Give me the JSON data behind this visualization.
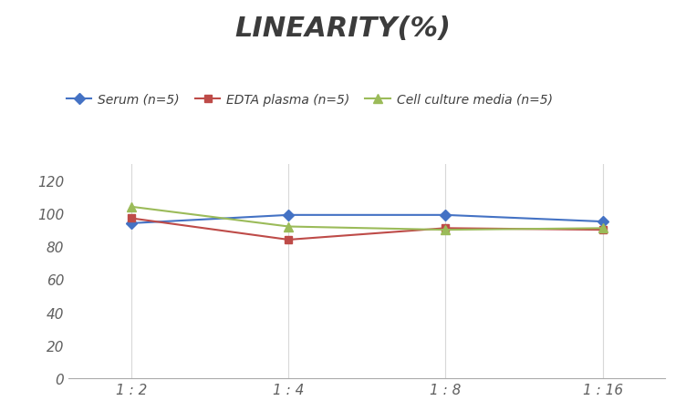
{
  "title": "LINEARITY(%)",
  "x_labels": [
    "1 : 2",
    "1 : 4",
    "1 : 8",
    "1 : 16"
  ],
  "x_positions": [
    0,
    1,
    2,
    3
  ],
  "series": [
    {
      "label": "Serum (n=5)",
      "values": [
        94,
        99,
        99,
        95
      ],
      "color": "#4472C4",
      "marker": "D",
      "marker_size": 6,
      "linewidth": 1.5
    },
    {
      "label": "EDTA plasma (n=5)",
      "values": [
        97,
        84,
        91,
        90
      ],
      "color": "#BE4B48",
      "marker": "s",
      "marker_size": 6,
      "linewidth": 1.5
    },
    {
      "label": "Cell culture media (n=5)",
      "values": [
        104,
        92,
        90,
        91
      ],
      "color": "#9BBB59",
      "marker": "^",
      "marker_size": 7,
      "linewidth": 1.5
    }
  ],
  "ylim": [
    0,
    130
  ],
  "yticks": [
    0,
    20,
    40,
    60,
    80,
    100,
    120
  ],
  "background_color": "#FFFFFF",
  "grid_color": "#D8D8D8",
  "title_fontsize": 22,
  "legend_fontsize": 10,
  "tick_fontsize": 11
}
